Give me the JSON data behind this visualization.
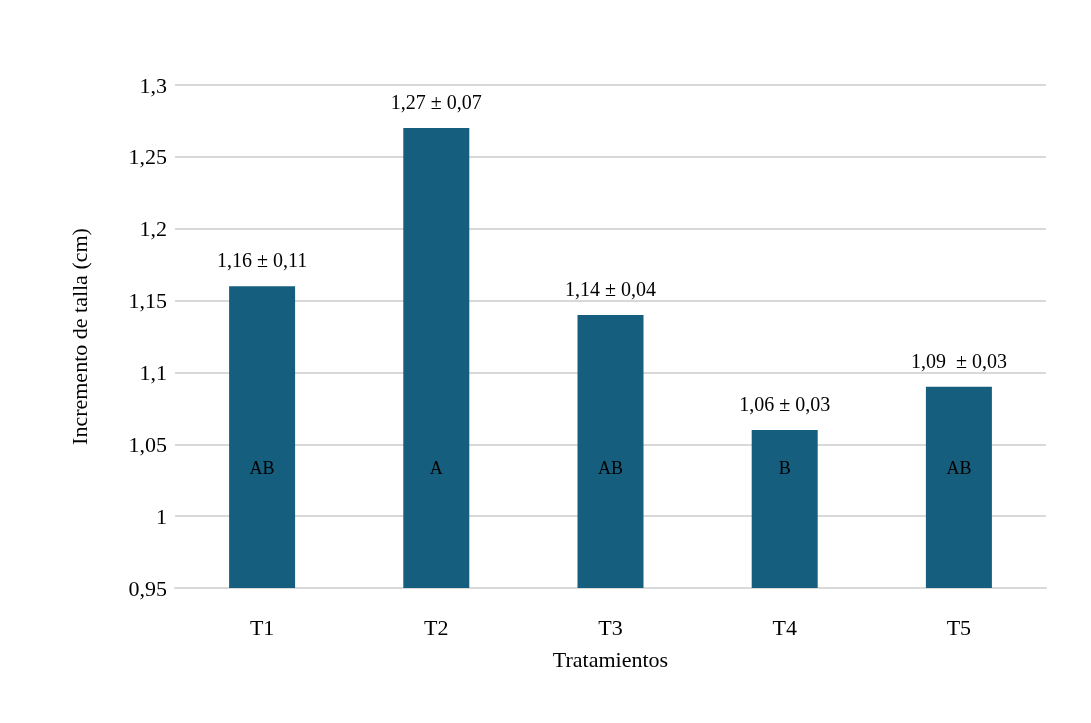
{
  "chart_data": {
    "type": "bar",
    "xlabel": "Tratamientos",
    "ylabel": "Incremento de talla (cm)",
    "categories": [
      "T1",
      "T2",
      "T3",
      "T4",
      "T5"
    ],
    "values": [
      1.16,
      1.27,
      1.14,
      1.06,
      1.09
    ],
    "value_labels": [
      "1,16 ± 0,11",
      "1,27 ± 0,07",
      "1,14 ± 0,04",
      "1,06 ± 0,03",
      "1,09  ± 0,03"
    ],
    "color": "#165e7e",
    "ylim": [
      0.95,
      1.3
    ],
    "yticks": [
      {
        "value": 0.95,
        "label": "0,95"
      },
      {
        "value": 1,
        "label": "1"
      },
      {
        "value": 1.05,
        "label": "1,05"
      },
      {
        "value": 1.1,
        "label": "1,1"
      },
      {
        "value": 1.15,
        "label": "1,15"
      },
      {
        "value": 1.2,
        "label": "1,2"
      },
      {
        "value": 1.25,
        "label": "1,25"
      },
      {
        "value": 1.3,
        "label": "1,3"
      }
    ],
    "grid": "y",
    "annotations": [
      "AB",
      "A",
      "AB",
      "B",
      "AB"
    ]
  }
}
